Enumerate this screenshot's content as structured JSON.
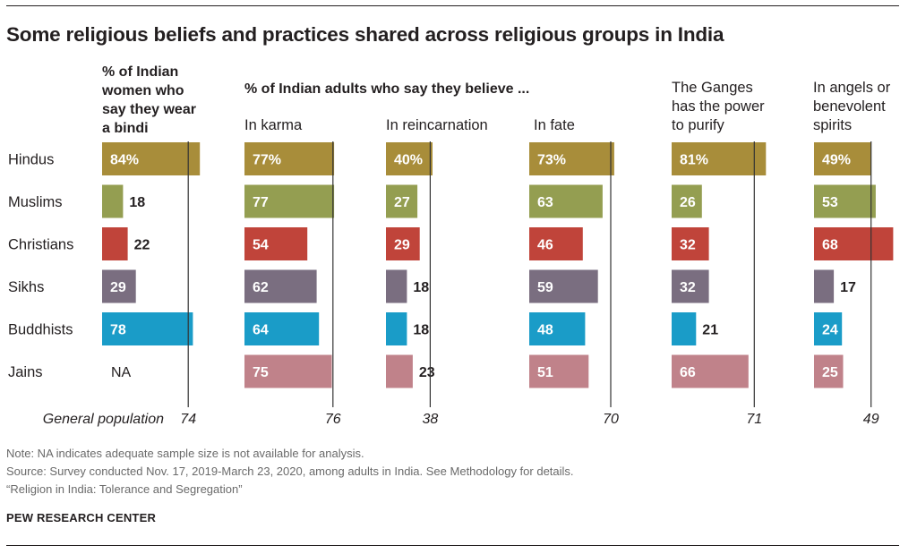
{
  "title": "Some religious beliefs and practices shared across religious groups in India",
  "bindi_header": "% of Indian\nwomen who\nsay they wear\na bindi",
  "adults_header": "% of Indian adults who say they believe ...",
  "panel_labels": [
    "In karma",
    "In reincarnation",
    "In fate",
    "The Ganges\nhas the power\nto purify",
    "In angels or\nbenevolent\nspirits"
  ],
  "notes": {
    "note": "Note: NA indicates adequate sample size is not available for analysis.",
    "source": "Source: Survey conducted Nov. 17, 2019-March 23, 2020, among adults in India. See Methodology for details.",
    "report": "“Religion in India: Tolerance and Segregation”"
  },
  "brand": "PEW RESEARCH CENTER",
  "colors": {
    "Hindus": "#a88d3a",
    "Muslims": "#949e51",
    "Christians": "#c0443a",
    "Sikhs": "#7a6e80",
    "Buddhists": "#1a9cc8",
    "Jains": "#c0828a"
  },
  "chart_data": {
    "type": "bar",
    "orientation": "horizontal",
    "categories": [
      "Hindus",
      "Muslims",
      "Christians",
      "Sikhs",
      "Buddhists",
      "Jains"
    ],
    "general_population_label": "General population",
    "na_label": "NA",
    "panels": [
      {
        "name": "% of Indian women who say they wear a bindi",
        "values": [
          84,
          18,
          22,
          29,
          78,
          null
        ],
        "value_labels": [
          "84%",
          "18",
          "22",
          "29",
          "78",
          "NA"
        ],
        "general_population": 74,
        "general_population_label": "74"
      },
      {
        "name": "In karma",
        "values": [
          77,
          77,
          54,
          62,
          64,
          75
        ],
        "value_labels": [
          "77%",
          "77",
          "54",
          "62",
          "64",
          "75"
        ],
        "general_population": 76,
        "general_population_label": "76"
      },
      {
        "name": "In reincarnation",
        "values": [
          40,
          27,
          29,
          18,
          18,
          23
        ],
        "value_labels": [
          "40%",
          "27",
          "29",
          "18",
          "18",
          "23"
        ],
        "general_population": 38,
        "general_population_label": "38"
      },
      {
        "name": "In fate",
        "values": [
          73,
          63,
          46,
          59,
          48,
          51
        ],
        "value_labels": [
          "73%",
          "63",
          "46",
          "59",
          "48",
          "51"
        ],
        "general_population": 70,
        "general_population_label": "70"
      },
      {
        "name": "The Ganges has the power to purify",
        "values": [
          81,
          26,
          32,
          32,
          21,
          66
        ],
        "value_labels": [
          "81%",
          "26",
          "32",
          "32",
          "21",
          "66"
        ],
        "general_population": 71,
        "general_population_label": "71"
      },
      {
        "name": "In angels or benevolent spirits",
        "values": [
          49,
          53,
          68,
          17,
          24,
          25
        ],
        "value_labels": [
          "49%",
          "53",
          "68",
          "17",
          "24",
          "25"
        ],
        "general_population": 49,
        "general_population_label": "49"
      }
    ]
  }
}
